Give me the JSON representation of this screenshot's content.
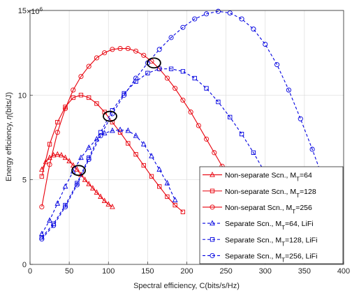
{
  "chart_data": {
    "type": "line",
    "xlabel": "Spectral efficiency, C(bits/s/Hz)",
    "ylabel_prefix": "Energy efficiency, ",
    "ylabel_symbol": "η",
    "ylabel_suffix": "(bits/J)",
    "y_exponent_base": "×10",
    "y_exponent_power": "6",
    "xlim": [
      0,
      400
    ],
    "ylim": [
      0,
      15
    ],
    "xticks": [
      "0",
      "50",
      "100",
      "150",
      "200",
      "250",
      "300",
      "350",
      "400"
    ],
    "yticks": [
      "0",
      "5",
      "10",
      "15"
    ],
    "grid": true,
    "legend_position": "bottom-right",
    "series": [
      {
        "label": "Non-separate Scn., M",
        "sub": "T",
        "suffix": "=64",
        "color": "#e8000b",
        "marker": "triangle",
        "dashed": false,
        "x": [
          15,
          20,
          25,
          30,
          35,
          40,
          45,
          50,
          55,
          60,
          65,
          70,
          75,
          80,
          85,
          90,
          95,
          100,
          105
        ],
        "y": [
          5.6,
          6.05,
          6.3,
          6.45,
          6.5,
          6.45,
          6.3,
          6.1,
          5.85,
          5.6,
          5.3,
          5.0,
          4.75,
          4.5,
          4.25,
          4.0,
          3.75,
          3.55,
          3.4
        ]
      },
      {
        "label": "Non-separate Scn., M",
        "sub": "T",
        "suffix": "=128",
        "color": "#e8000b",
        "marker": "square",
        "dashed": false,
        "x": [
          15,
          25,
          35,
          45,
          55,
          65,
          75,
          85,
          95,
          105,
          115,
          125,
          135,
          145,
          155,
          165,
          175,
          185,
          195
        ],
        "y": [
          5.2,
          7.1,
          8.4,
          9.3,
          9.85,
          10.0,
          9.85,
          9.5,
          9.0,
          8.4,
          7.8,
          7.15,
          6.5,
          5.85,
          5.2,
          4.6,
          4.0,
          3.5,
          3.1
        ]
      },
      {
        "label": "Non-separat Scn., M",
        "sub": "T",
        "suffix": "=256",
        "color": "#e8000b",
        "marker": "circle",
        "dashed": false,
        "x": [
          15,
          25,
          35,
          45,
          55,
          65,
          75,
          85,
          95,
          105,
          115,
          125,
          135,
          145,
          155,
          165,
          175,
          185,
          195,
          205,
          215,
          225,
          235,
          245,
          255,
          265,
          275,
          285,
          295
        ],
        "y": [
          3.4,
          5.9,
          7.8,
          9.2,
          10.3,
          11.1,
          11.7,
          12.2,
          12.5,
          12.7,
          12.75,
          12.75,
          12.6,
          12.35,
          12.0,
          11.55,
          11.0,
          10.4,
          9.7,
          9.0,
          8.2,
          7.4,
          6.6,
          5.8,
          5.0,
          4.2,
          3.6,
          3.1,
          2.8
        ]
      },
      {
        "label": "Separate Scn., M",
        "sub": "T",
        "suffix": "=64, LiFi",
        "color": "#0000e0",
        "marker": "triangle",
        "dashed": true,
        "x": [
          15,
          25,
          35,
          45,
          55,
          65,
          75,
          85,
          95,
          105,
          115,
          125,
          135,
          145,
          155,
          165,
          175,
          185
        ],
        "y": [
          1.8,
          2.6,
          3.6,
          4.6,
          5.5,
          6.3,
          6.9,
          7.4,
          7.75,
          7.9,
          7.95,
          7.9,
          7.6,
          7.1,
          6.4,
          5.6,
          4.8,
          3.8
        ]
      },
      {
        "label": "Separate Scn., M",
        "sub": "T",
        "suffix": "=128, LiFi",
        "color": "#0000e0",
        "marker": "square",
        "dashed": true,
        "x": [
          15,
          30,
          45,
          60,
          75,
          90,
          105,
          120,
          135,
          150,
          165,
          180,
          195,
          210,
          225,
          240,
          255,
          270,
          285,
          300,
          315
        ],
        "y": [
          1.6,
          2.4,
          3.5,
          4.8,
          6.3,
          7.8,
          9.1,
          10.1,
          10.8,
          11.3,
          11.55,
          11.55,
          11.4,
          11.0,
          10.4,
          9.6,
          8.7,
          7.7,
          6.6,
          5.4,
          4.2
        ]
      },
      {
        "label": "Separate Scn., M",
        "sub": "T",
        "suffix": "=256, LiFi",
        "color": "#0000e0",
        "marker": "circle",
        "dashed": true,
        "x": [
          15,
          30,
          45,
          60,
          75,
          90,
          105,
          120,
          135,
          150,
          165,
          180,
          195,
          210,
          225,
          240,
          255,
          270,
          285,
          300,
          315,
          330,
          345,
          360,
          375
        ],
        "y": [
          1.5,
          2.3,
          3.4,
          4.7,
          6.2,
          7.6,
          8.9,
          10.0,
          11.0,
          11.9,
          12.7,
          13.4,
          14.0,
          14.5,
          14.8,
          14.95,
          14.85,
          14.5,
          13.9,
          13.0,
          11.8,
          10.3,
          8.6,
          6.8,
          4.9
        ]
      }
    ],
    "highlight_circles": [
      {
        "x": 62,
        "y": 5.55
      },
      {
        "x": 102,
        "y": 8.75
      },
      {
        "x": 158,
        "y": 11.9
      }
    ]
  }
}
